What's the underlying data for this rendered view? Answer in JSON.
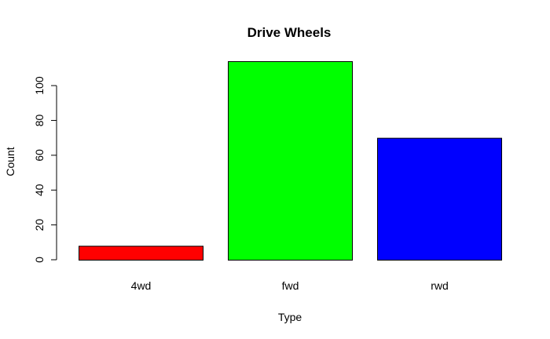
{
  "chart_data": {
    "type": "bar",
    "title": "Drive Wheels",
    "xlabel": "Type",
    "ylabel": "Count",
    "categories": [
      "4wd",
      "fwd",
      "rwd"
    ],
    "values": [
      8,
      114,
      70
    ],
    "colors": [
      "#ff0000",
      "#00ff00",
      "#0000ff"
    ],
    "bar_border_color": "#000000",
    "ylim": [
      0,
      114
    ],
    "yticks": [
      0,
      20,
      40,
      60,
      80,
      100
    ],
    "ytick_labels": [
      "0",
      "20",
      "40",
      "60",
      "80",
      "100"
    ],
    "grid": false,
    "legend": "none"
  }
}
